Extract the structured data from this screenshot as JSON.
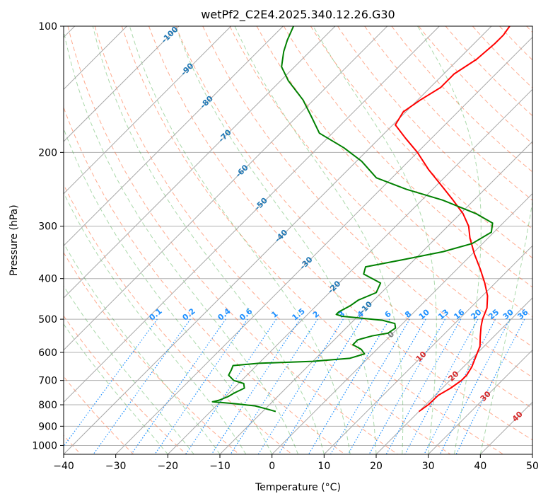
{
  "chart_data": {
    "type": "line",
    "title": "wetPf2_C2E4.2025.340.12.26.G30",
    "xlabel": "Temperature (°C)",
    "ylabel": "Pressure (hPa)",
    "xlim": [
      -40,
      50
    ],
    "ylim": [
      1050,
      100
    ],
    "y_scale": "log",
    "skew": 45,
    "grid": true,
    "x_ticks": [
      -40,
      -30,
      -20,
      -10,
      0,
      10,
      20,
      30,
      40,
      50
    ],
    "y_ticks": [
      100,
      200,
      300,
      400,
      500,
      600,
      700,
      800,
      900,
      1000
    ],
    "colors": {
      "temperature": "#ff0000",
      "dewpoint": "#008000",
      "mixing_ratio": "#1f77b4",
      "dry_adiabat": "#ff6633",
      "moist_adiabat": "#2ca02c",
      "isotherm": "#999999",
      "mixing_label": "#1e90ff",
      "isotherm_label_cold": "#1f77b4",
      "isotherm_label_warm": "#d62728"
    },
    "mixing_ratio_labels": [
      "0.1",
      "0.2",
      "0.4",
      "0.6",
      "1",
      "1.5",
      "2",
      "3",
      "4",
      "6",
      "8",
      "10",
      "13",
      "16",
      "20",
      "25",
      "30",
      "36"
    ],
    "isotherm_labels": [
      "-100",
      "-90",
      "-80",
      "-70",
      "-60",
      "-50",
      "-40",
      "-30",
      "-20",
      "-10",
      "0",
      "10",
      "20",
      "30",
      "40"
    ],
    "series": [
      {
        "id": "temperature",
        "points": [
          [
            830,
            20.0
          ],
          [
            800,
            20.5
          ],
          [
            760,
            20.6
          ],
          [
            730,
            21.6
          ],
          [
            700,
            22.2
          ],
          [
            680,
            22.2
          ],
          [
            650,
            21.6
          ],
          [
            620,
            20.6
          ],
          [
            580,
            19.2
          ],
          [
            550,
            17.4
          ],
          [
            520,
            15.6
          ],
          [
            500,
            14.5
          ],
          [
            470,
            13.2
          ],
          [
            440,
            11.0
          ],
          [
            410,
            8.0
          ],
          [
            380,
            4.5
          ],
          [
            350,
            0.5
          ],
          [
            320,
            -3.5
          ],
          [
            300,
            -6.0
          ],
          [
            280,
            -9.5
          ],
          [
            260,
            -14.0
          ],
          [
            240,
            -19.0
          ],
          [
            220,
            -24.5
          ],
          [
            200,
            -30.0
          ],
          [
            185,
            -35.0
          ],
          [
            172,
            -39.5
          ],
          [
            160,
            -40.5
          ],
          [
            150,
            -39.5
          ],
          [
            140,
            -38.0
          ],
          [
            130,
            -38.0
          ],
          [
            120,
            -36.5
          ],
          [
            110,
            -36.0
          ],
          [
            105,
            -36.0
          ],
          [
            100,
            -36.5
          ]
        ]
      },
      {
        "id": "dewpoint",
        "points": [
          [
            830,
            -7.5
          ],
          [
            818,
            -9.8
          ],
          [
            805,
            -12.5
          ],
          [
            795,
            -17.0
          ],
          [
            787,
            -21.5
          ],
          [
            780,
            -20.5
          ],
          [
            765,
            -19.5
          ],
          [
            750,
            -19.0
          ],
          [
            730,
            -18.0
          ],
          [
            712,
            -19.0
          ],
          [
            700,
            -21.5
          ],
          [
            680,
            -23.5
          ],
          [
            660,
            -24.0
          ],
          [
            645,
            -24.5
          ],
          [
            637,
            -20.0
          ],
          [
            630,
            -10.0
          ],
          [
            620,
            -3.5
          ],
          [
            605,
            -1.5
          ],
          [
            590,
            -3.0
          ],
          [
            575,
            -5.5
          ],
          [
            560,
            -5.5
          ],
          [
            548,
            -3.5
          ],
          [
            540,
            -1.0
          ],
          [
            525,
            -0.5
          ],
          [
            512,
            -1.5
          ],
          [
            503,
            -4.5
          ],
          [
            497,
            -9.0
          ],
          [
            492,
            -13.0
          ],
          [
            487,
            -14.5
          ],
          [
            480,
            -14.5
          ],
          [
            465,
            -13.5
          ],
          [
            450,
            -13.0
          ],
          [
            432,
            -11.0
          ],
          [
            410,
            -12.0
          ],
          [
            390,
            -17.0
          ],
          [
            375,
            -18.0
          ],
          [
            360,
            -12.0
          ],
          [
            345,
            -6.0
          ],
          [
            330,
            -2.0
          ],
          [
            310,
            -0.5
          ],
          [
            295,
            -2.0
          ],
          [
            280,
            -7.0
          ],
          [
            260,
            -16.0
          ],
          [
            245,
            -25.0
          ],
          [
            230,
            -33.0
          ],
          [
            210,
            -39.0
          ],
          [
            195,
            -45.0
          ],
          [
            180,
            -52.5
          ],
          [
            165,
            -57.0
          ],
          [
            150,
            -62.0
          ],
          [
            135,
            -68.5
          ],
          [
            125,
            -72.5
          ],
          [
            115,
            -75.0
          ],
          [
            108,
            -76.5
          ],
          [
            100,
            -78.0
          ]
        ]
      }
    ]
  }
}
